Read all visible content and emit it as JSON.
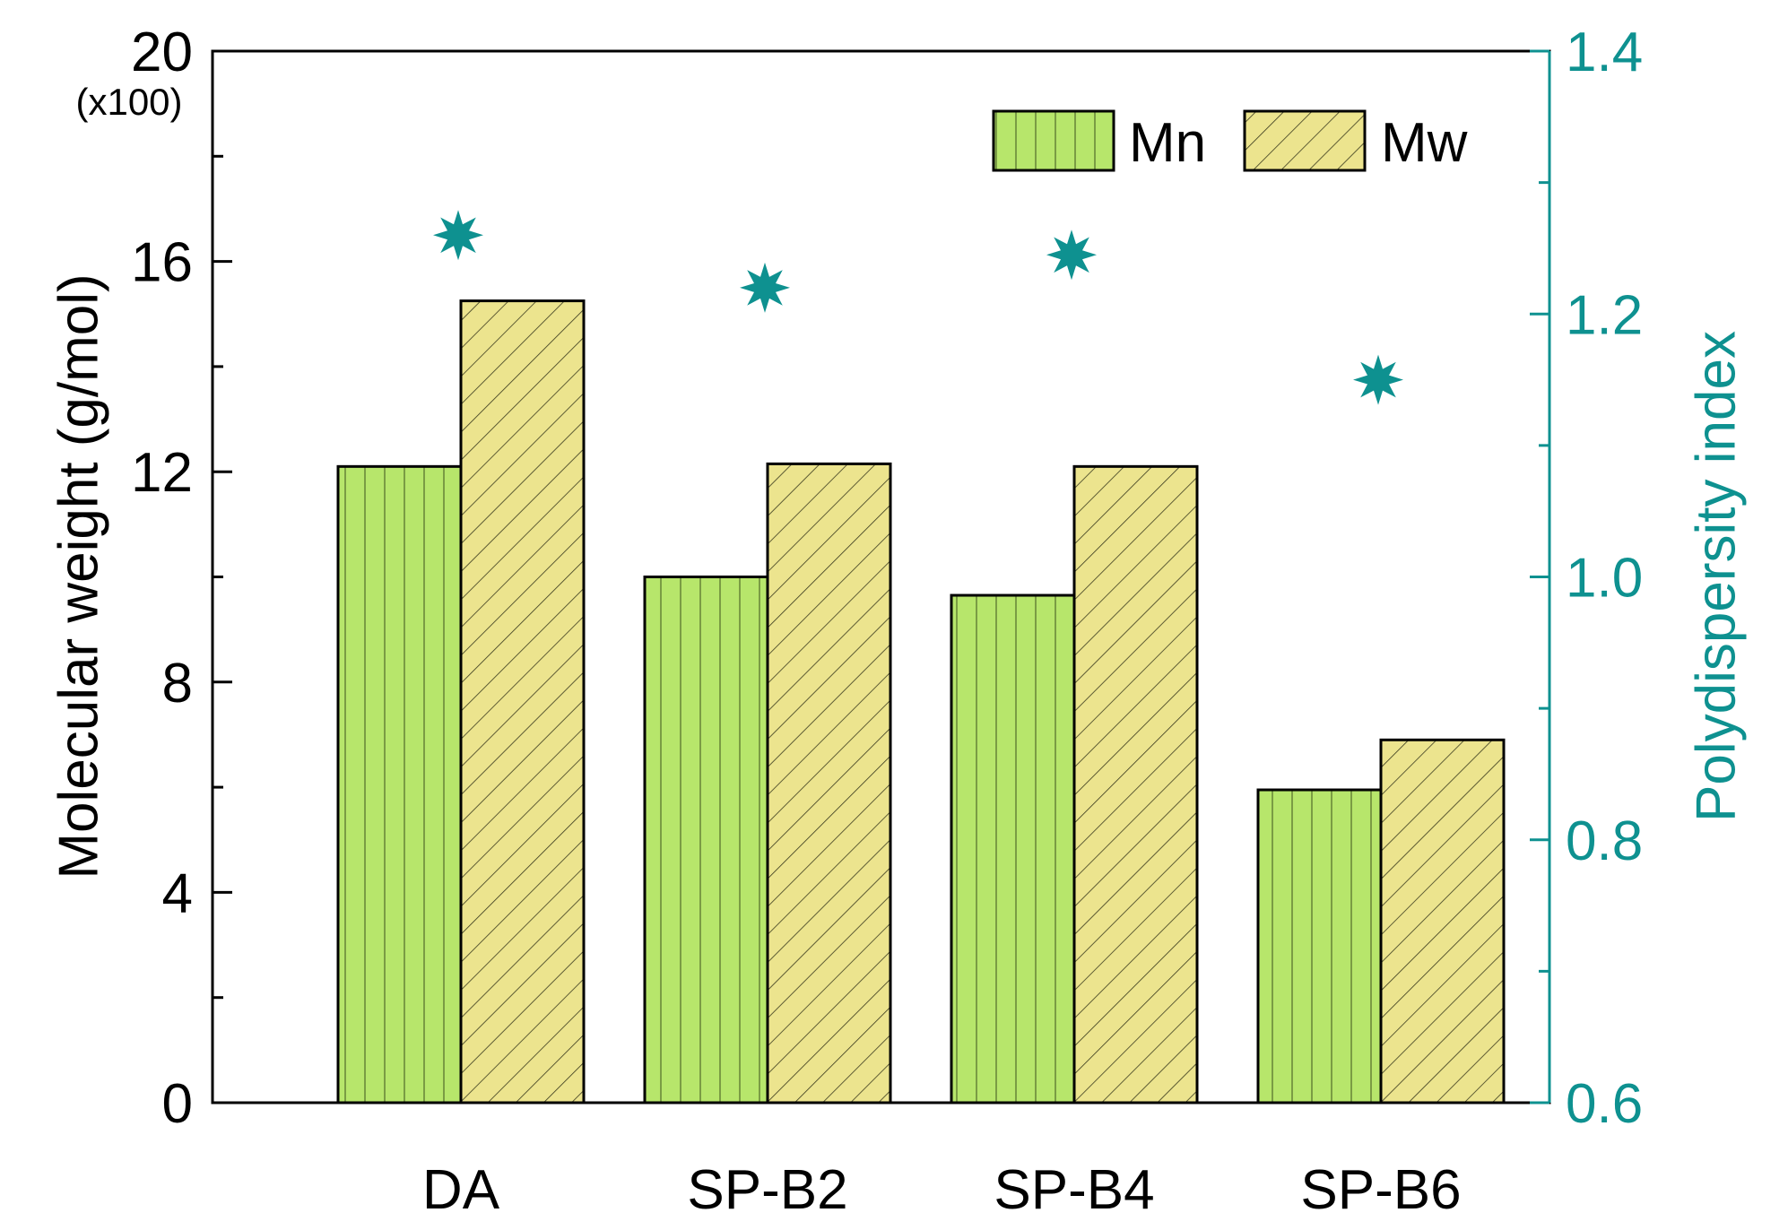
{
  "chart_data": {
    "type": "bar",
    "categories": [
      "DA",
      "SP-B2",
      "SP-B4",
      "SP-B6"
    ],
    "series": [
      {
        "name": "Mn",
        "axis": "left",
        "values": [
          12.1,
          10.0,
          9.65,
          5.95
        ],
        "color": "#b7e66b",
        "pattern": "vertical-lines"
      },
      {
        "name": "Mw",
        "axis": "left",
        "values": [
          15.25,
          12.15,
          12.1,
          6.9
        ],
        "color": "#ece48e",
        "pattern": "diagonal-hatch"
      },
      {
        "name": "Polydispersity index",
        "axis": "right",
        "type": "scatter",
        "marker": "star",
        "values": [
          1.26,
          1.22,
          1.245,
          1.15
        ],
        "color": "#0e9190"
      }
    ],
    "ylabel": "Molecular weight (g/mol)",
    "ylabel_multiplier": "(x100)",
    "ylim": [
      0,
      20
    ],
    "yticks": [
      "0",
      "4",
      "8",
      "12",
      "16",
      "20"
    ],
    "y2label": "Polydispersity index",
    "y2lim": [
      0.6,
      1.4
    ],
    "y2ticks": [
      "0.6",
      "0.8",
      "1.0",
      "1.2",
      "1.4"
    ],
    "legend": {
      "entries": [
        "Mn",
        "Mw"
      ],
      "placement": "top-right"
    },
    "xlabel": "",
    "grid": false
  },
  "colors": {
    "axis": "#000000",
    "right_axis": "#0e9190",
    "mn_fill": "#b7e66b",
    "mw_fill": "#ece48e"
  }
}
